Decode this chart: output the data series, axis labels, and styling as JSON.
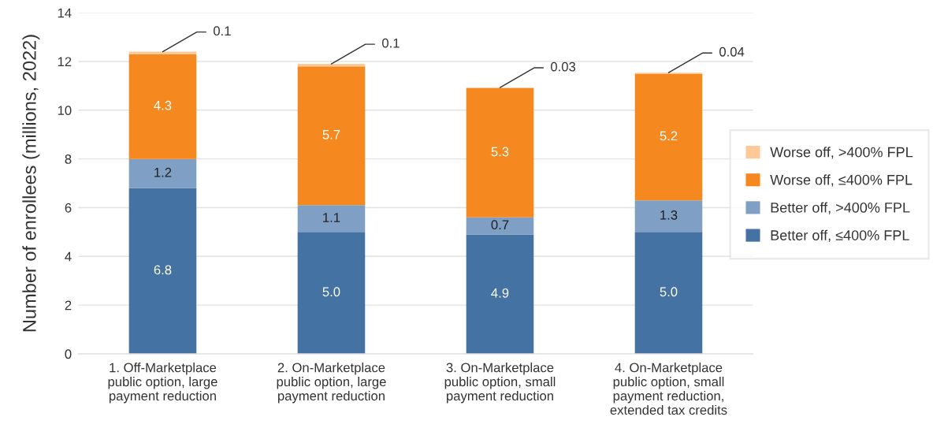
{
  "chart_data": {
    "type": "bar",
    "stacked": true,
    "ylabel": "Number of enrollees (millions, 2022)",
    "categories": [
      "1. Off-Marketplace\npublic option, large\npayment reduction",
      "2. On-Marketplace\npublic option, large\npayment reduction",
      "3. On-Marketplace\npublic option, small\npayment reduction",
      "4. On-Marketplace\npublic option, small\npayment reduction,\nextended tax credits"
    ],
    "series": [
      {
        "name": "Better off, ≤400% FPL",
        "color": "#4472a2",
        "values": [
          6.8,
          5.0,
          4.9,
          5.0
        ],
        "value_labels": [
          "6.8",
          "5.0",
          "4.9",
          "5.0"
        ]
      },
      {
        "name": "Better off, >400% FPL",
        "color": "#7f9fc5",
        "values": [
          1.2,
          1.1,
          0.7,
          1.3
        ],
        "value_labels": [
          "1.2",
          "1.1",
          "0.7",
          "1.3"
        ]
      },
      {
        "name": "Worse off, ≤400% FPL",
        "color": "#f5891f",
        "values": [
          4.3,
          5.7,
          5.3,
          5.2
        ],
        "value_labels": [
          "4.3",
          "5.7",
          "5.3",
          "5.2"
        ]
      },
      {
        "name": "Worse off, >400% FPL",
        "color": "#fdc997",
        "values": [
          0.1,
          0.1,
          0.03,
          0.04
        ],
        "value_labels": [
          "0.1",
          "0.1",
          "0.03",
          "0.04"
        ]
      }
    ],
    "ylim": [
      0,
      14
    ],
    "yticks": [
      0,
      2,
      4,
      6,
      8,
      10,
      12,
      14
    ],
    "grid": "y",
    "legend": "right"
  }
}
